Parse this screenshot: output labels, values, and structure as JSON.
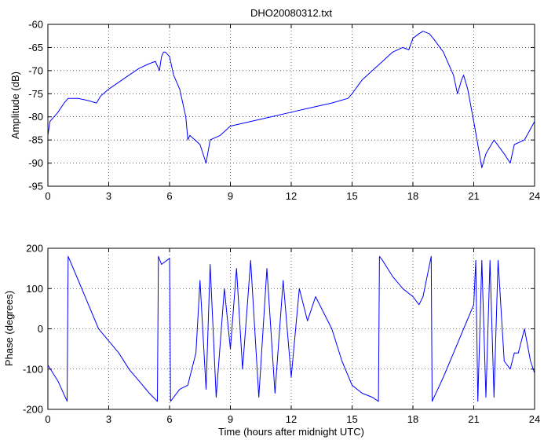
{
  "chart_data": [
    {
      "type": "line",
      "title": "DHO20080312.txt",
      "xlabel": "",
      "ylabel": "Amplitude (dB)",
      "xlim": [
        0,
        24
      ],
      "ylim": [
        -95,
        -60
      ],
      "xticks": [
        "0",
        "3",
        "6",
        "9",
        "12",
        "15",
        "18",
        "21",
        "24"
      ],
      "yticks": [
        "-60",
        "-65",
        "-70",
        "-75",
        "-80",
        "-85",
        "-90",
        "-95"
      ],
      "grid": true,
      "line_color": "#0000ff",
      "series": [
        {
          "x": [
            0,
            0.1,
            0.3,
            0.5,
            0.8,
            1.0,
            1.5,
            2.0,
            2.4,
            2.6,
            3.0,
            3.5,
            4.0,
            4.5,
            5.0,
            5.3,
            5.5,
            5.6,
            5.7,
            5.8,
            6.0,
            6.2,
            6.5,
            6.8,
            6.9,
            7.0,
            7.5,
            7.8,
            8.0,
            8.5,
            9.0,
            10.0,
            11.0,
            12.0,
            13.0,
            14.0,
            14.8,
            15.0,
            15.5,
            16.0,
            16.5,
            17.0,
            17.5,
            17.8,
            18.0,
            18.3,
            18.5,
            18.8,
            19.0,
            19.5,
            20.0,
            20.2,
            20.4,
            20.5,
            20.7,
            21.0,
            21.2,
            21.4,
            21.6,
            22.0,
            22.5,
            22.8,
            23.0,
            23.5,
            24.0
          ],
          "y": [
            -84,
            -81,
            -80,
            -79,
            -77,
            -76,
            -76,
            -76.5,
            -77,
            -75.5,
            -74,
            -72.5,
            -71,
            -69.5,
            -68.5,
            -68,
            -70,
            -67,
            -66,
            -66,
            -67,
            -71,
            -74,
            -80,
            -85,
            -84,
            -86,
            -90,
            -85,
            -84,
            -82,
            -81,
            -80,
            -79,
            -78,
            -77,
            -76,
            -75,
            -72,
            -70,
            -68,
            -66,
            -65,
            -65.5,
            -63,
            -62,
            -61.5,
            -62,
            -63,
            -66,
            -71,
            -75,
            -72,
            -71,
            -74,
            -81,
            -86,
            -91,
            -88,
            -85,
            -88,
            -90,
            -86,
            -85,
            -81
          ]
        }
      ]
    },
    {
      "type": "line",
      "title": "",
      "xlabel": "Time (hours after midnight UTC)",
      "ylabel": "Phase (degrees)",
      "xlim": [
        0,
        24
      ],
      "ylim": [
        -200,
        200
      ],
      "xticks": [
        "0",
        "3",
        "6",
        "9",
        "12",
        "15",
        "18",
        "21",
        "24"
      ],
      "yticks": [
        "200",
        "100",
        "0",
        "-100",
        "-200"
      ],
      "grid": true,
      "line_color": "#0000ff",
      "series": [
        {
          "x": [
            0,
            0.5,
            0.95,
            1.0,
            1.5,
            2.0,
            2.5,
            3.0,
            3.5,
            4.0,
            4.5,
            5.0,
            5.4,
            5.45,
            5.6,
            6.0,
            6.05,
            6.5,
            6.9,
            7.0,
            7.3,
            7.5,
            7.8,
            8.0,
            8.3,
            8.7,
            9.0,
            9.3,
            9.6,
            10.0,
            10.4,
            10.8,
            11.2,
            11.6,
            12.0,
            12.4,
            12.8,
            13.2,
            13.6,
            14.0,
            14.5,
            15.0,
            15.5,
            16.0,
            16.3,
            16.35,
            16.5,
            17.0,
            17.5,
            18.0,
            18.3,
            18.5,
            18.9,
            18.95,
            19.5,
            20.0,
            20.5,
            21.0,
            21.1,
            21.2,
            21.4,
            21.6,
            21.8,
            22.0,
            22.2,
            22.5,
            22.8,
            23.0,
            23.2,
            23.5,
            23.8,
            24.0
          ],
          "y": [
            -90,
            -130,
            -180,
            180,
            120,
            60,
            0,
            -30,
            -60,
            -100,
            -130,
            -160,
            -180,
            180,
            160,
            175,
            -180,
            -150,
            -140,
            -120,
            -60,
            120,
            -150,
            160,
            -170,
            100,
            -50,
            150,
            -100,
            170,
            -170,
            150,
            -160,
            120,
            -120,
            100,
            20,
            80,
            40,
            0,
            -80,
            -140,
            -160,
            -170,
            -180,
            180,
            170,
            130,
            100,
            80,
            60,
            80,
            180,
            -180,
            -120,
            -60,
            0,
            60,
            170,
            -180,
            170,
            -170,
            170,
            -170,
            170,
            -80,
            -100,
            -60,
            -60,
            0,
            -80,
            -110
          ]
        }
      ]
    }
  ]
}
